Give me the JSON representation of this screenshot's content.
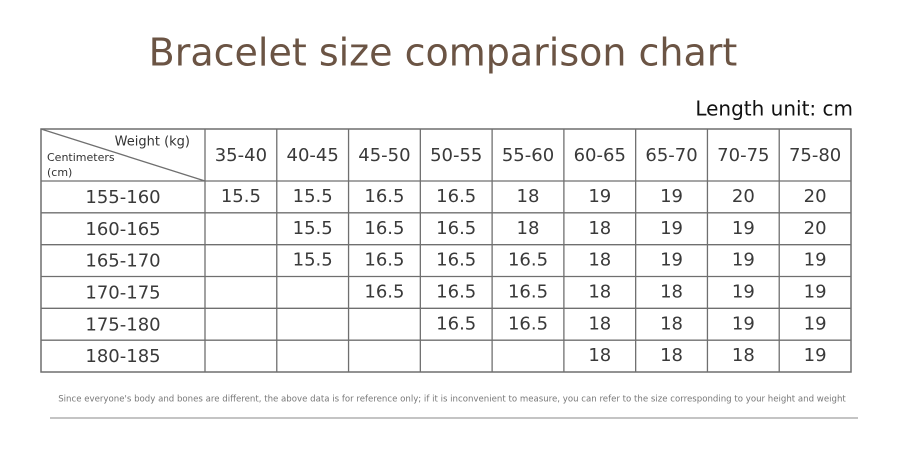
{
  "title": "Bracelet size comparison chart",
  "unit_note": "Length unit: cm",
  "table": {
    "corner": {
      "top": "Weight (kg)",
      "bottom_line1": "Centimeters",
      "bottom_line2": "(cm)"
    },
    "columns": [
      "35-40",
      "40-45",
      "45-50",
      "50-55",
      "55-60",
      "60-65",
      "65-70",
      "70-75",
      "75-80"
    ],
    "rows": [
      {
        "label": "155-160",
        "cells": [
          15.5,
          15.5,
          16.5,
          16.5,
          18,
          19,
          19,
          20,
          20
        ]
      },
      {
        "label": "160-165",
        "cells": [
          null,
          15.5,
          16.5,
          16.5,
          18,
          18,
          19,
          19,
          20
        ]
      },
      {
        "label": "165-170",
        "cells": [
          null,
          15.5,
          16.5,
          16.5,
          16.5,
          18,
          19,
          19,
          19
        ]
      },
      {
        "label": "170-175",
        "cells": [
          null,
          null,
          16.5,
          16.5,
          16.5,
          18,
          18,
          19,
          19
        ]
      },
      {
        "label": "175-180",
        "cells": [
          null,
          null,
          null,
          16.5,
          16.5,
          18,
          18,
          19,
          19
        ]
      },
      {
        "label": "180-185",
        "cells": [
          null,
          null,
          null,
          null,
          null,
          18,
          18,
          18,
          19
        ]
      }
    ]
  },
  "footnote": "Since everyone's body and bones are different, the above data is for reference only; if it is inconvenient to measure, you can refer to the size corresponding to your height and weight"
}
